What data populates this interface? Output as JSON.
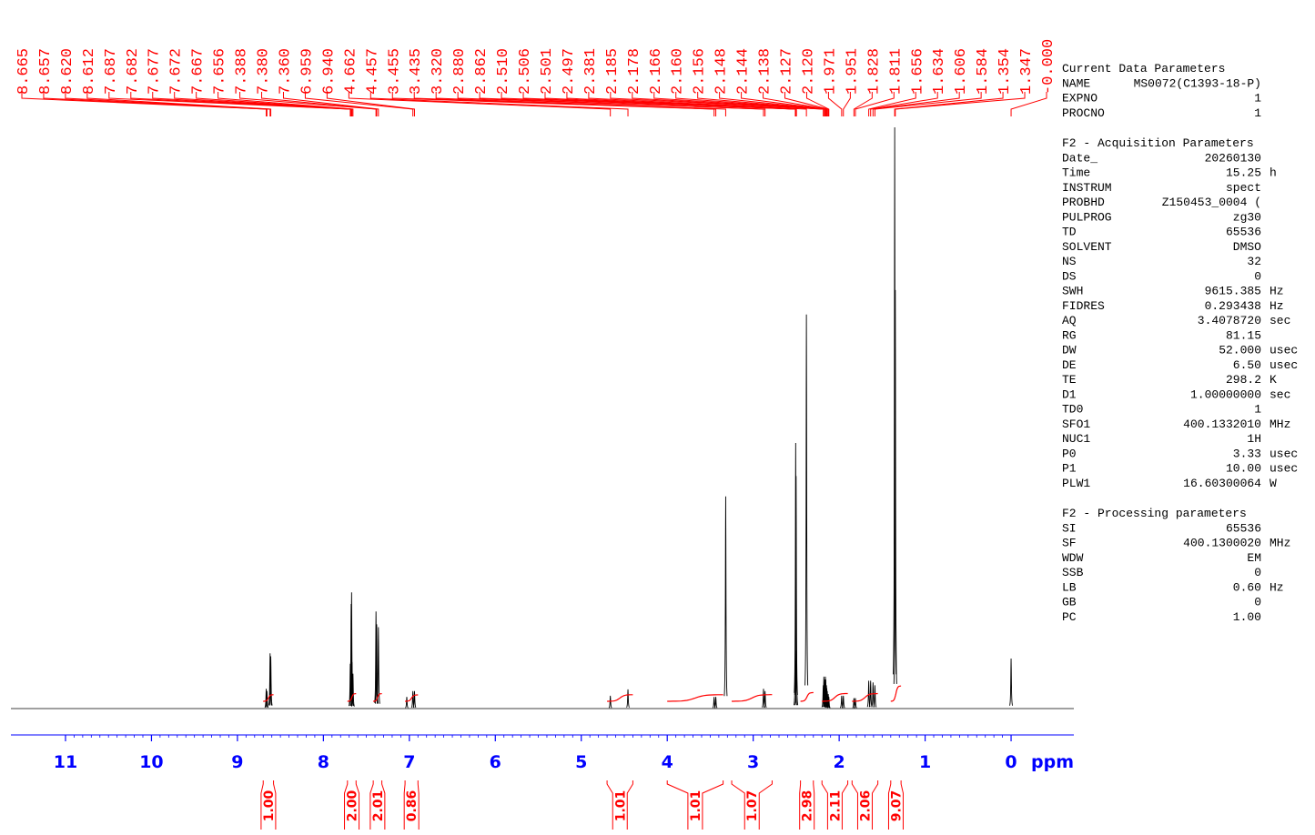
{
  "chart_data": {
    "type": "nmr",
    "x_unit": "ppm",
    "xlim": [
      11.635,
      -0.73
    ],
    "ylim": [
      0,
      100
    ],
    "xticks": [
      11,
      10,
      9,
      8,
      7,
      6,
      5,
      4,
      3,
      2,
      1,
      0
    ],
    "color": "#000000",
    "annotation_color": "#ff0000",
    "axis_color": "#0000ff",
    "x": [
      8.665,
      8.657,
      8.62,
      8.612,
      7.687,
      7.682,
      7.677,
      7.672,
      7.667,
      7.656,
      7.388,
      7.38,
      7.36,
      7.03,
      6.959,
      6.94,
      4.662,
      4.457,
      3.455,
      3.435,
      3.32,
      2.88,
      2.862,
      2.51,
      2.506,
      2.501,
      2.497,
      2.381,
      2.185,
      2.178,
      2.166,
      2.16,
      2.156,
      2.148,
      2.144,
      2.138,
      2.127,
      2.12,
      1.971,
      1.951,
      1.828,
      1.811,
      1.656,
      1.634,
      1.606,
      1.584,
      1.354,
      1.347,
      0
    ],
    "values": [
      3.4,
      3,
      9.5,
      9,
      7.7,
      8,
      18,
      20,
      8,
      6,
      16.7,
      14.5,
      14,
      2,
      3,
      3,
      2.2,
      3.3,
      2,
      2,
      36.5,
      3.4,
      3,
      10,
      45.7,
      40,
      10,
      67.8,
      4,
      5.5,
      5,
      5.5,
      5,
      4,
      3.5,
      3,
      2.5,
      2,
      2.2,
      2.2,
      1.8,
      1.8,
      4.8,
      4.8,
      4.5,
      4,
      100,
      72,
      8.6
    ],
    "peak_labels": [
      8.665,
      8.657,
      {
        "value": 8.62,
        "label": "8.620"
      },
      8.612,
      7.687,
      7.682,
      7.677,
      7.672,
      7.667,
      7.656,
      7.388,
      {
        "value": 7.38,
        "label": "7.380"
      },
      {
        "value": 7.36,
        "label": "7.360"
      },
      6.959,
      {
        "value": 6.94,
        "label": "6.940"
      },
      4.662,
      4.457,
      3.455,
      3.435,
      {
        "value": 3.32,
        "label": "3.320"
      },
      {
        "value": 2.88,
        "label": "2.880"
      },
      2.862,
      {
        "value": 2.51,
        "label": "2.510"
      },
      2.506,
      2.501,
      2.497,
      2.381,
      2.185,
      2.178,
      2.166,
      {
        "value": 2.16,
        "label": "2.160"
      },
      2.156,
      2.148,
      2.144,
      2.138,
      2.127,
      {
        "value": 2.12,
        "label": "2.120"
      },
      1.971,
      1.951,
      1.828,
      1.811,
      1.656,
      1.634,
      1.606,
      1.584,
      1.354,
      1.347,
      {
        "value": 0,
        "label": "-0.000"
      }
    ],
    "integrals": {
      "from": [
        8.7,
        7.72,
        7.42,
        7.05,
        4.7,
        4.0,
        3.25,
        2.45,
        2.2,
        1.85,
        1.4
      ],
      "to": [
        8.58,
        7.62,
        7.32,
        6.9,
        4.4,
        3.35,
        2.78,
        2.3,
        1.9,
        1.55,
        1.28
      ],
      "values": [
        1,
        2,
        2.01,
        0.86,
        1.01,
        1.01,
        1.07,
        2.98,
        2.11,
        2.06,
        9.07
      ],
      "value_labels": [
        "1.00",
        "2.00",
        "2.01",
        "0.86",
        "1.01",
        "1.01",
        "1.07",
        "2.98",
        "2.11",
        "2.06",
        "9.07"
      ]
    }
  },
  "parameters": [
    {
      "title": "Current Data Parameters",
      "rows": [
        [
          "NAME",
          "MS0072(C1393-18-P)"
        ],
        [
          "EXPNO",
          "1"
        ],
        [
          "PROCNO",
          "1"
        ]
      ]
    },
    {
      "title": "F2 - Acquisition Parameters",
      "rows": [
        [
          "Date_",
          "20260130"
        ],
        [
          "Time",
          "15.25",
          "h"
        ],
        [
          "INSTRUM",
          "spect"
        ],
        [
          "PROBHD",
          "Z150453_0004 ("
        ],
        [
          "PULPROG",
          "zg30"
        ],
        [
          "TD",
          "65536"
        ],
        [
          "SOLVENT",
          "DMSO"
        ],
        [
          "NS",
          "32"
        ],
        [
          "DS",
          "0"
        ],
        [
          "SWH",
          "9615.385",
          "Hz"
        ],
        [
          "FIDRES",
          "0.293438",
          "Hz"
        ],
        [
          "AQ",
          "3.4078720",
          "sec"
        ],
        [
          "RG",
          "81.15"
        ],
        [
          "DW",
          "52.000",
          "usec"
        ],
        [
          "DE",
          "6.50",
          "usec"
        ],
        [
          "TE",
          "298.2",
          "K"
        ],
        [
          "D1",
          "1.00000000",
          "sec"
        ],
        [
          "TD0",
          "1"
        ],
        [
          "SFO1",
          "400.1332010",
          "MHz"
        ],
        [
          "NUC1",
          "1H"
        ],
        [
          "P0",
          "3.33",
          "usec"
        ],
        [
          "P1",
          "10.00",
          "usec"
        ],
        [
          "PLW1",
          "16.60300064",
          "W"
        ]
      ]
    },
    {
      "title": "F2 - Processing parameters",
      "rows": [
        [
          "SI",
          "65536"
        ],
        [
          "SF",
          "400.1300020",
          "MHz"
        ],
        [
          "WDW",
          "EM"
        ],
        [
          "SSB",
          "0"
        ],
        [
          "LB",
          "0.60",
          "Hz"
        ],
        [
          "GB",
          "0"
        ],
        [
          "PC",
          "1.00"
        ]
      ]
    }
  ]
}
